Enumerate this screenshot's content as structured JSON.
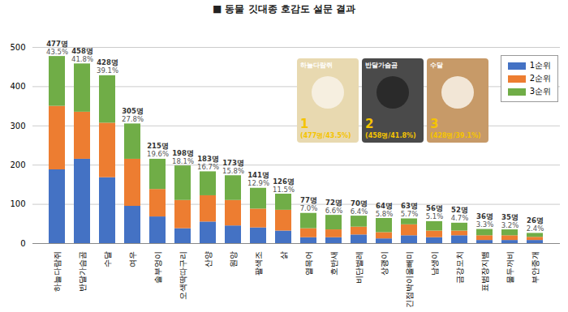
{
  "chart_data": {
    "type": "bar",
    "title": "■ 동물 깃대종 호감도 설문 결과",
    "categories": [
      "하늘다람쥐",
      "반달가슴곰",
      "수달",
      "여우",
      "솔부엉이",
      "오색딱따구리",
      "산양",
      "원앙",
      "팔색조",
      "삵",
      "열목어",
      "호반새",
      "비단벌레",
      "상괭이",
      "긴점박이올빼미",
      "남생이",
      "금강모치",
      "표범장지뱀",
      "물두꺼비",
      "부안종개"
    ],
    "series": [
      {
        "name": "1순위",
        "color": "#4472c4",
        "values": [
          188,
          215,
          168,
          95,
          68,
          38,
          55,
          45,
          40,
          32,
          15,
          15,
          22,
          12,
          20,
          15,
          20,
          8,
          8,
          8
        ]
      },
      {
        "name": "2순위",
        "color": "#ed7d31",
        "values": [
          162,
          120,
          139,
          120,
          70,
          72,
          67,
          65,
          48,
          53,
          23,
          20,
          20,
          16,
          28,
          17,
          12,
          12,
          12,
          8
        ]
      },
      {
        "name": "3순위",
        "color": "#70ad47",
        "values": [
          127,
          123,
          121,
          90,
          77,
          88,
          61,
          63,
          53,
          41,
          39,
          37,
          28,
          36,
          15,
          24,
          20,
          16,
          15,
          10
        ]
      }
    ],
    "totals": {
      "values": [
        477,
        458,
        428,
        305,
        215,
        198,
        183,
        173,
        141,
        126,
        77,
        72,
        70,
        64,
        63,
        56,
        52,
        36,
        35,
        26
      ],
      "value_labels": [
        "477명",
        "458명",
        "428명",
        "305명",
        "215명",
        "198명",
        "183명",
        "173명",
        "141명",
        "126명",
        "77명",
        "72명",
        "70명",
        "64명",
        "63명",
        "56명",
        "52명",
        "36명",
        "35명",
        "26명"
      ]
    },
    "shares": {
      "values": [
        43.5,
        41.8,
        39.1,
        27.8,
        19.6,
        18.1,
        16.7,
        15.8,
        12.9,
        11.5,
        7.0,
        6.6,
        6.4,
        5.8,
        5.7,
        5.1,
        4.7,
        3.3,
        3.2,
        2.4
      ],
      "value_labels": [
        "43.5%",
        "41.8%",
        "39.1%",
        "27.8%",
        "19.6%",
        "18.1%",
        "16.7%",
        "15.8%",
        "12.9%",
        "11.5%",
        "7.0%",
        "6.6%",
        "6.4%",
        "5.8%",
        "5.7%",
        "5.1%",
        "4.7%",
        "3.3%",
        "3.2%",
        "2.4%"
      ]
    },
    "annotations": [
      {
        "name": "하늘다람쥐",
        "rank": 1,
        "text": "(477명/43.5%)"
      },
      {
        "name": "반달가슴곰",
        "rank": 2,
        "text": "(458명/41.8%)"
      },
      {
        "name": "수달",
        "rank": 3,
        "text": "(428명/39.1%)"
      }
    ],
    "ylim": [
      0,
      500
    ],
    "yticks": [
      0,
      100,
      200,
      300,
      400,
      500
    ],
    "grid": true,
    "stacked": true,
    "legend": "top-right",
    "data_labels": true
  }
}
